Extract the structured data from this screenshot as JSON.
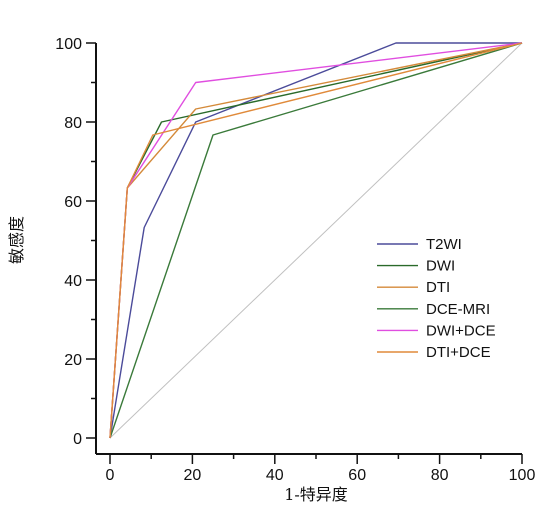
{
  "chart_data": {
    "type": "line",
    "title": "",
    "xlabel": "1-特异度",
    "ylabel": "敏感度",
    "xlim": [
      0,
      100
    ],
    "ylim": [
      0,
      100
    ],
    "x_ticks": [
      0,
      20,
      40,
      60,
      80,
      100
    ],
    "y_ticks": [
      0,
      20,
      40,
      60,
      80,
      100
    ],
    "x_tick_labels": [
      "0",
      "20",
      "40",
      "60",
      "80",
      "100"
    ],
    "y_tick_labels": [
      "0",
      "20",
      "40",
      "60",
      "80",
      "100"
    ],
    "grid": false,
    "legend_position": "right",
    "reference_line": {
      "x": [
        0,
        100
      ],
      "y": [
        0,
        100
      ],
      "color": "#c0c0c0"
    },
    "series": [
      {
        "name": "T2WI",
        "color": "#4b4b9a",
        "x": [
          0,
          8.3,
          20.8,
          69.4,
          100
        ],
        "y": [
          0,
          53.3,
          80,
          100,
          100
        ]
      },
      {
        "name": "DWI",
        "color": "#2a6a2a",
        "x": [
          0,
          4.2,
          12.5,
          100
        ],
        "y": [
          0,
          63.3,
          80,
          100
        ]
      },
      {
        "name": "DTI",
        "color": "#d48a3a",
        "x": [
          0,
          4.2,
          20.8,
          100
        ],
        "y": [
          0,
          63.3,
          83.3,
          100
        ]
      },
      {
        "name": "DCE-MRI",
        "color": "#3a7a3a",
        "x": [
          0,
          25,
          100
        ],
        "y": [
          0,
          76.7,
          100
        ]
      },
      {
        "name": "DWI+DCE",
        "color": "#e04ee0",
        "x": [
          0,
          4.2,
          20.8,
          100
        ],
        "y": [
          0,
          63.3,
          90,
          100
        ]
      },
      {
        "name": "DTI+DCE",
        "color": "#e08a3a",
        "x": [
          0,
          4.2,
          10.4,
          100
        ],
        "y": [
          0,
          63.3,
          76.7,
          100
        ]
      }
    ]
  }
}
